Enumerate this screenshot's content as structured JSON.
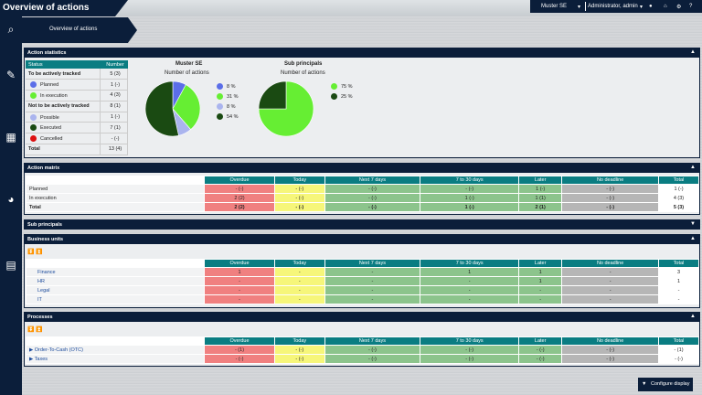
{
  "title": "Overview of actions",
  "crumb": "Overview of actions",
  "topbar": {
    "tenant": "Muster SE",
    "user": "Administrator, admin"
  },
  "stats": {
    "header": "Action statistics",
    "col_status": "Status",
    "col_number": "Number",
    "rows": [
      {
        "label": "To be actively tracked",
        "value": "5 (3)",
        "bold": true,
        "color": ""
      },
      {
        "label": "Planned",
        "value": "1 (-)",
        "bold": false,
        "color": "#5b6ee8"
      },
      {
        "label": "In execution",
        "value": "4 (3)",
        "bold": false,
        "color": "#66ee33"
      },
      {
        "label": "Not to be actively tracked",
        "value": "8 (1)",
        "bold": true,
        "color": ""
      },
      {
        "label": "Possible",
        "value": "1 (-)",
        "bold": false,
        "color": "#aab4ee"
      },
      {
        "label": "Executed",
        "value": "7 (1)",
        "bold": false,
        "color": "#1a4a12"
      },
      {
        "label": "Cancelled",
        "value": "- (-)",
        "bold": false,
        "color": "#dd1111"
      },
      {
        "label": "Total",
        "value": "13 (4)",
        "bold": true,
        "color": ""
      }
    ]
  },
  "pie1": {
    "title": "Muster SE",
    "subtitle": "Number of actions",
    "slices": [
      {
        "label": "8 %",
        "value": 8,
        "color": "#5b6ee8"
      },
      {
        "label": "31 %",
        "value": 31,
        "color": "#66ee33"
      },
      {
        "label": "8 %",
        "value": 8,
        "color": "#aab4ee"
      },
      {
        "label": "54 %",
        "value": 54,
        "color": "#1a4a12"
      }
    ]
  },
  "pie2": {
    "title": "Sub principals",
    "subtitle": "Number of actions",
    "slices": [
      {
        "label": "75 %",
        "value": 75,
        "color": "#66ee33"
      },
      {
        "label": "25 %",
        "value": 25,
        "color": "#1a4a12"
      }
    ]
  },
  "columns": [
    "Overdue",
    "Today",
    "Next 7 days",
    "7 to 30 days",
    "Later",
    "No deadline",
    "Total"
  ],
  "matrix": {
    "header": "Action matrix",
    "rows": [
      {
        "label": "Planned",
        "cells": [
          "- (-)",
          "- (-)",
          "- (-)",
          "- (-)",
          "1 (-)",
          "- (-)",
          "1 (-)"
        ],
        "bold": false
      },
      {
        "label": "In execution",
        "cells": [
          "2 (2)",
          "- (-)",
          "- (-)",
          "1 (-)",
          "1 (1)",
          "- (-)",
          "4 (3)"
        ],
        "bold": false
      },
      {
        "label": "Total",
        "cells": [
          "2 (2)",
          "- (-)",
          "- (-)",
          "1 (-)",
          "2 (1)",
          "- (-)",
          "5 (3)"
        ],
        "bold": true
      }
    ]
  },
  "sub_principals": {
    "header": "Sub principals"
  },
  "business_units": {
    "header": "Business units",
    "rows": [
      {
        "label": "Finance",
        "cells": [
          "1",
          "-",
          "-",
          "1",
          "1",
          "-",
          "3"
        ]
      },
      {
        "label": "HR",
        "cells": [
          "-",
          "-",
          "-",
          "-",
          "1",
          "-",
          "1"
        ]
      },
      {
        "label": "Legal",
        "cells": [
          "-",
          "-",
          "-",
          "-",
          "-",
          "-",
          "-"
        ]
      },
      {
        "label": "IT",
        "cells": [
          "-",
          "-",
          "-",
          "-",
          "-",
          "-",
          "-"
        ]
      }
    ]
  },
  "processes": {
    "header": "Processes",
    "rows": [
      {
        "label": "Order-To-Cash (OTC)",
        "cells": [
          "- (1)",
          "- (-)",
          "- (-)",
          "- (-)",
          "- (-)",
          "- (-)",
          "- (1)"
        ]
      },
      {
        "label": "Taxes",
        "cells": [
          "- (-)",
          "- (-)",
          "- (-)",
          "- (-)",
          "- (-)",
          "- (-)",
          "- (-)"
        ]
      }
    ]
  },
  "configure_label": "Configure display",
  "colors": {
    "navy": "#0b1e3a",
    "teal": "#0a7d82",
    "overdue": "#f08080",
    "today": "#f6f67a",
    "upcoming": "#8cc48c",
    "nodeadline": "#b6b6b6"
  }
}
